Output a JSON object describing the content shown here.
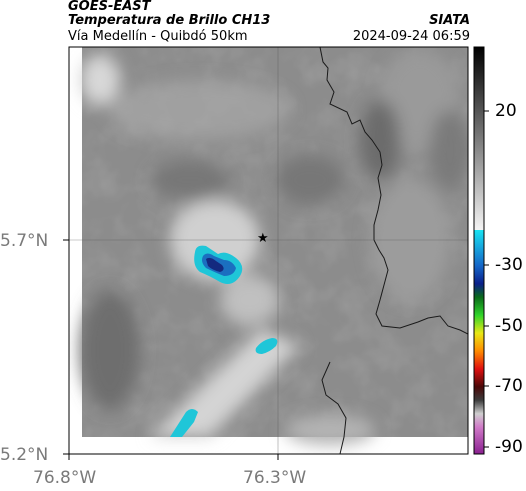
{
  "header": {
    "satellite": "GOES-EAST",
    "product": "Temperatura de Brillo CH13",
    "route": "Vía Medellín - Quibdó 50km",
    "agency": "SIATA",
    "timestamp": "2024-09-24 06:59"
  },
  "axes": {
    "lat_ticks": [
      "5.7°N",
      "5.2°N"
    ],
    "lon_ticks": [
      "76.8°W",
      "76.3°W"
    ]
  },
  "colorbar": {
    "ticks": [
      "20",
      "-30",
      "-50",
      "-70",
      "-90"
    ]
  },
  "marker": {
    "symbol": "★"
  }
}
